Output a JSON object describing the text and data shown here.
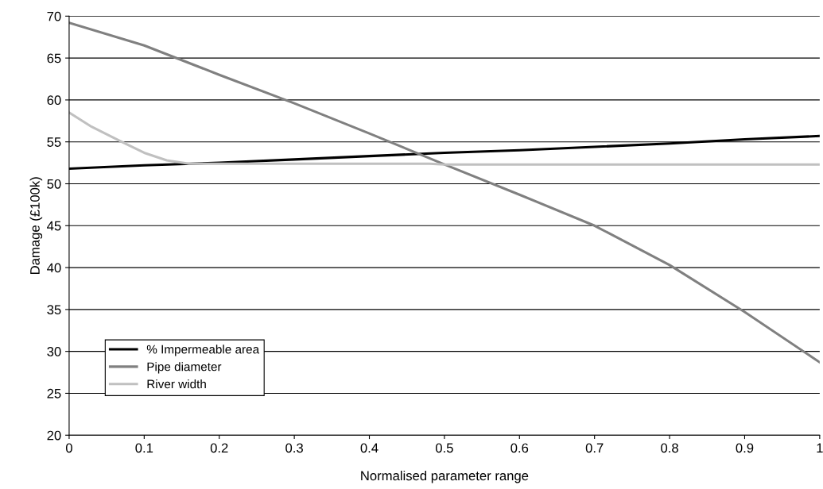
{
  "chart_data": {
    "type": "line",
    "xlabel": "Normalised parameter range",
    "ylabel": "Damage (£100k)",
    "xlim": [
      0,
      1
    ],
    "xticks": [
      0,
      0.1,
      0.2,
      0.3,
      0.4,
      0.5,
      0.6,
      0.7,
      0.8,
      0.9,
      1
    ],
    "ylim": [
      20,
      70
    ],
    "yticks": [
      20,
      25,
      30,
      35,
      40,
      45,
      50,
      55,
      60,
      65,
      70
    ],
    "grid": "y",
    "legend": "bottom left",
    "marker": "none",
    "line_style": "solid",
    "series": [
      {
        "name": "% Impermeable area",
        "color": "#000000",
        "x": [
          0,
          0.1,
          0.2,
          0.3,
          0.4,
          0.5,
          0.6,
          0.7,
          0.8,
          0.9,
          1
        ],
        "values": [
          51.8,
          52.2,
          52.5,
          52.9,
          53.3,
          53.7,
          54.0,
          54.4,
          54.8,
          55.3,
          55.7
        ]
      },
      {
        "name": "Pipe diameter",
        "color": "#808080",
        "x": [
          0,
          0.1,
          0.2,
          0.3,
          0.4,
          0.5,
          0.6,
          0.7,
          0.8,
          0.9,
          1
        ],
        "values": [
          69.2,
          66.5,
          63.0,
          59.6,
          56.0,
          52.3,
          48.7,
          45.0,
          40.3,
          34.7,
          28.7
        ]
      },
      {
        "name": "River width",
        "color": "#c0c0c0",
        "x": [
          0,
          0.03,
          0.07,
          0.1,
          0.13,
          0.16,
          0.48,
          0.5,
          1
        ],
        "values": [
          58.5,
          56.8,
          55.0,
          53.7,
          52.8,
          52.4,
          52.4,
          52.3,
          52.3
        ]
      }
    ]
  }
}
